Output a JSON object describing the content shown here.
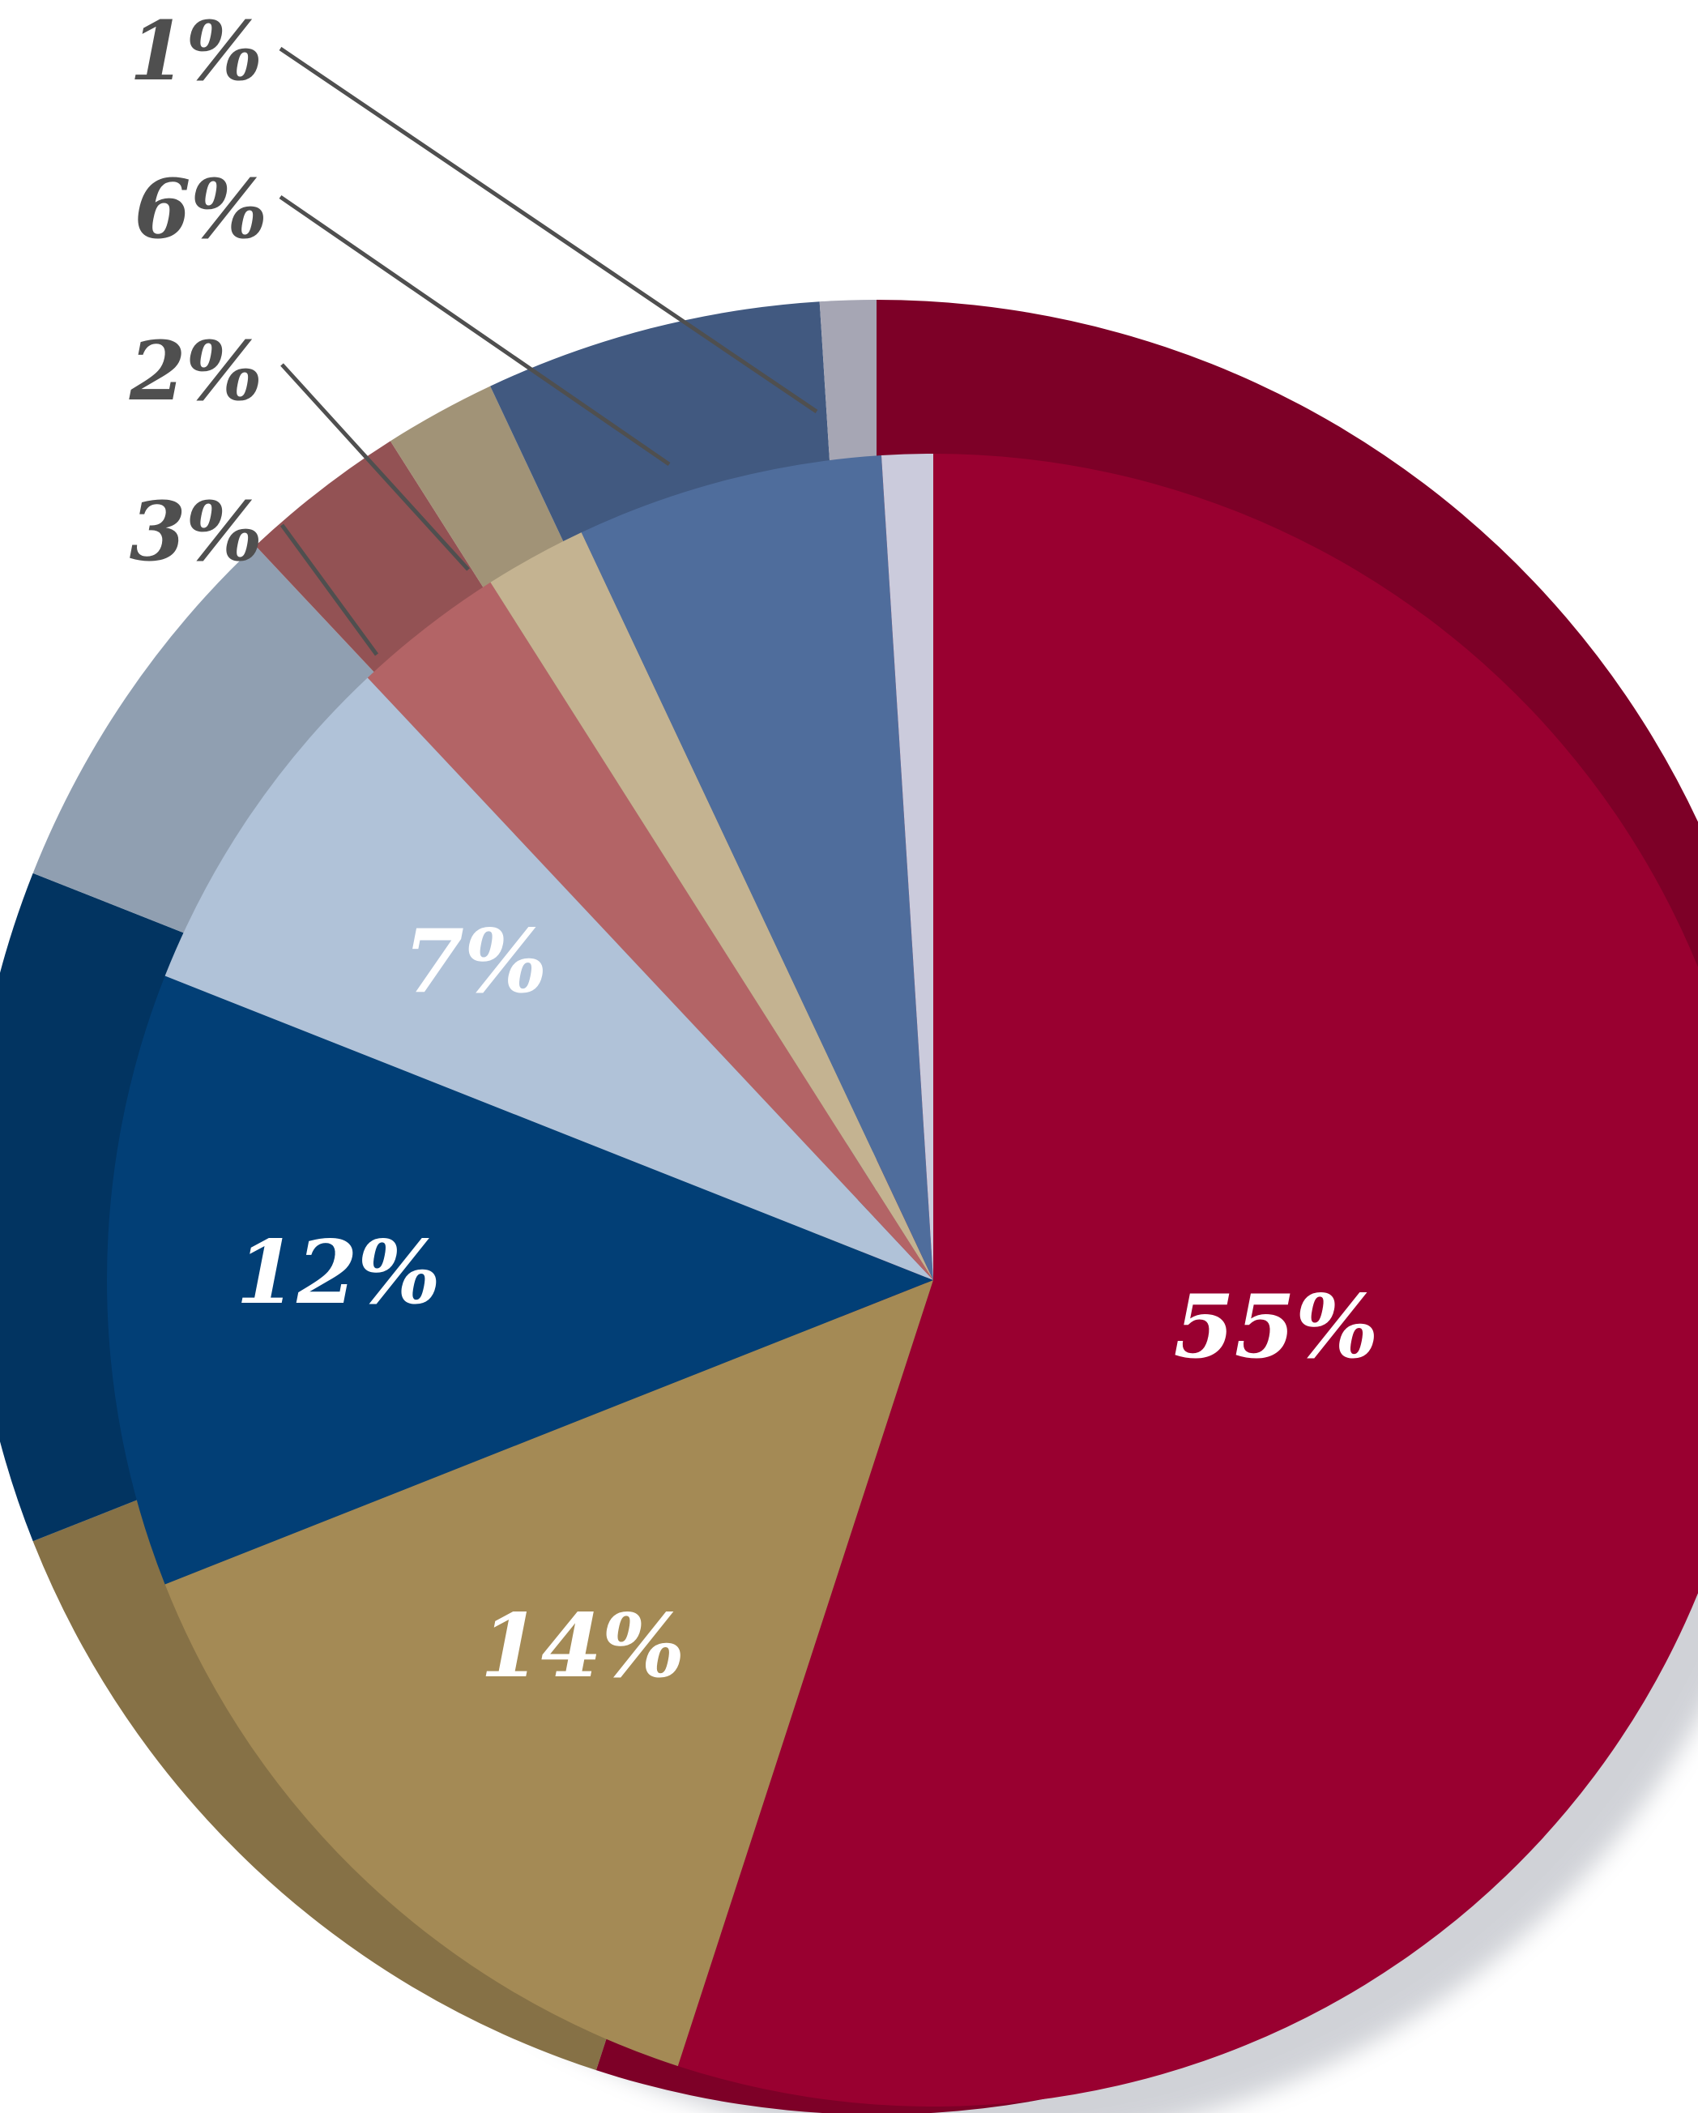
{
  "chart_data": {
    "type": "pie",
    "title": "",
    "units": "%",
    "start_angle_deg": 0,
    "direction": "clockwise",
    "label_color_inside": "#ffffff",
    "label_color_outside": "#4f4f4f",
    "leader_color": "#4f4f4f",
    "slices": [
      {
        "value": 55,
        "label": "55%",
        "color": "#990030",
        "label_position": "inside"
      },
      {
        "value": 14,
        "label": "14%",
        "color": "#a48a55",
        "label_position": "inside"
      },
      {
        "value": 12,
        "label": "12%",
        "color": "#023f76",
        "label_position": "inside"
      },
      {
        "value": 7,
        "label": "7%",
        "color": "#b0c2d8",
        "label_position": "inside"
      },
      {
        "value": 3,
        "label": "3%",
        "color": "#b36466",
        "label_position": "outside"
      },
      {
        "value": 2,
        "label": "2%",
        "color": "#c4b391",
        "label_position": "outside"
      },
      {
        "value": 6,
        "label": "6%",
        "color": "#4f6d9c",
        "label_position": "outside"
      },
      {
        "value": 1,
        "label": "1%",
        "color": "#cbcbdc",
        "label_position": "outside"
      }
    ]
  }
}
